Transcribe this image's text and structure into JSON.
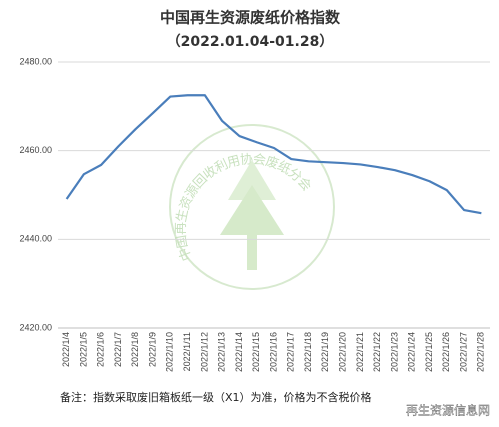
{
  "chart_data": {
    "type": "line",
    "title": "中国再生资源废纸价格指数",
    "subtitle": "（2022.01.04-01.28）",
    "note": "备注：指数采取废旧箱板纸一级（X1）为准，价格为不含税价格",
    "watermark_text": "中国再生资源回收利用协会废纸分会",
    "watermark_site": "再生资源信息网",
    "categories": [
      "2022/1/4",
      "2022/1/5",
      "2022/1/6",
      "2022/1/7",
      "2022/1/8",
      "2022/1/9",
      "2022/1/10",
      "2022/1/11",
      "2022/1/12",
      "2022/1/13",
      "2022/1/14",
      "2022/1/15",
      "2022/1/16",
      "2022/1/17",
      "2022/1/18",
      "2022/1/19",
      "2022/1/20",
      "2022/1/21",
      "2022/1/22",
      "2022/1/23",
      "2022/1/24",
      "2022/1/25",
      "2022/1/26",
      "2022/1/27",
      "2022/1/28"
    ],
    "values": [
      2449.1,
      2454.7,
      2456.8,
      2461.0,
      2464.9,
      2468.5,
      2472.2,
      2472.5,
      2472.5,
      2466.7,
      2463.3,
      2461.9,
      2460.6,
      2458.1,
      2457.6,
      2457.4,
      2457.2,
      2456.9,
      2456.3,
      2455.6,
      2454.5,
      2453.1,
      2451.1,
      2446.6,
      2445.9
    ],
    "color": "#4a7ebb",
    "ylim": [
      2420,
      2480
    ],
    "yticks": [
      {
        "value": 2420,
        "label": "2420.00"
      },
      {
        "value": 2440,
        "label": "2440.00"
      },
      {
        "value": 2460,
        "label": "2460.00"
      },
      {
        "value": 2480,
        "label": "2480.00"
      }
    ],
    "grid": true
  }
}
